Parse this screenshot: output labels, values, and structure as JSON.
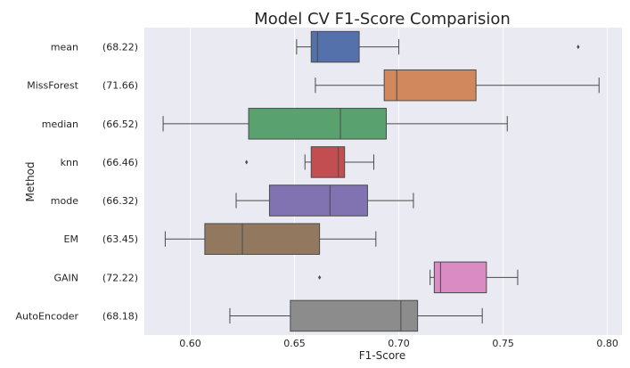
{
  "chart_data": {
    "type": "boxplot",
    "title": "Model CV F1-Score Comparision",
    "xlabel": "F1-Score",
    "ylabel": "Method",
    "xlim": [
      0.578,
      0.807
    ],
    "xticks": [
      0.6,
      0.65,
      0.7,
      0.75,
      0.8
    ],
    "xtick_labels": [
      "0.60",
      "0.65",
      "0.70",
      "0.75",
      "0.80"
    ],
    "grid": true,
    "series": [
      {
        "name": "mean",
        "score": "(68.22)",
        "color": "#5471ab",
        "whisker_low": 0.651,
        "q1": 0.658,
        "median": 0.661,
        "q3": 0.681,
        "whisker_high": 0.7,
        "outliers": [
          0.786
        ]
      },
      {
        "name": "MissForest",
        "score": "(71.66)",
        "color": "#d1885c",
        "whisker_low": 0.66,
        "q1": 0.693,
        "median": 0.699,
        "q3": 0.737,
        "whisker_high": 0.796,
        "outliers": []
      },
      {
        "name": "median",
        "score": "(66.52)",
        "color": "#59a16e",
        "whisker_low": 0.587,
        "q1": 0.628,
        "median": 0.672,
        "q3": 0.694,
        "whisker_high": 0.752,
        "outliers": []
      },
      {
        "name": "knn",
        "score": "(66.46)",
        "color": "#c34e52",
        "whisker_low": 0.655,
        "q1": 0.658,
        "median": 0.671,
        "q3": 0.674,
        "whisker_high": 0.688,
        "outliers": [
          0.627
        ]
      },
      {
        "name": "mode",
        "score": "(66.32)",
        "color": "#8172b2",
        "whisker_low": 0.622,
        "q1": 0.638,
        "median": 0.667,
        "q3": 0.685,
        "whisker_high": 0.707,
        "outliers": []
      },
      {
        "name": "EM",
        "score": "(63.45)",
        "color": "#937860",
        "whisker_low": 0.588,
        "q1": 0.607,
        "median": 0.625,
        "q3": 0.662,
        "whisker_high": 0.689,
        "outliers": []
      },
      {
        "name": "GAIN",
        "score": "(72.22)",
        "color": "#da8bc3",
        "whisker_low": 0.715,
        "q1": 0.717,
        "median": 0.72,
        "q3": 0.742,
        "whisker_high": 0.757,
        "outliers": [
          0.662
        ]
      },
      {
        "name": "AutoEncoder",
        "score": "(68.18)",
        "color": "#8c8c8c",
        "whisker_low": 0.619,
        "q1": 0.648,
        "median": 0.701,
        "q3": 0.709,
        "whisker_high": 0.74,
        "outliers": []
      }
    ]
  }
}
